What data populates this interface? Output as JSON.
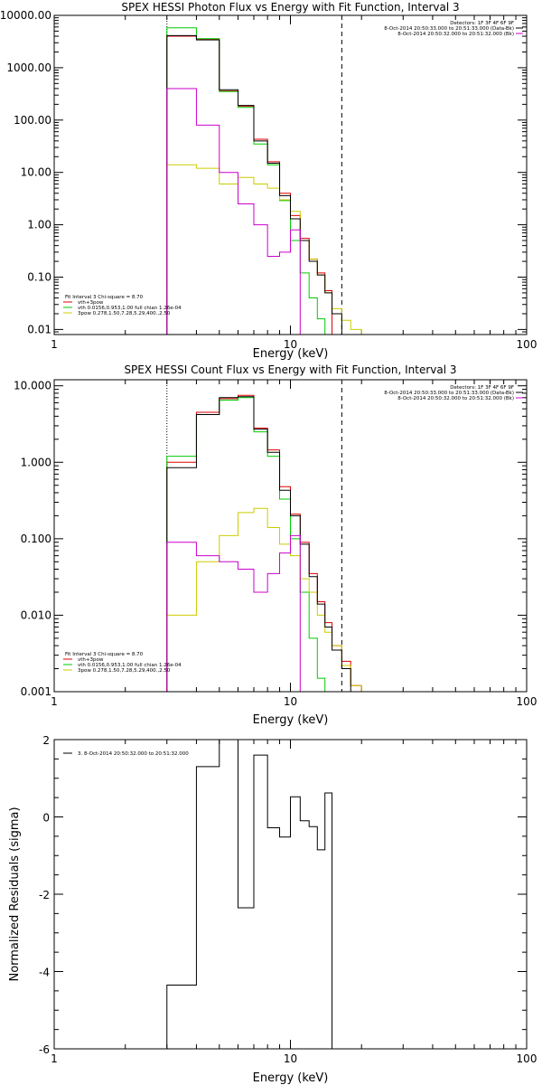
{
  "charts": [
    {
      "title": "SPEX HESSI Photon Flux vs Energy with Fit Function, Interval 3",
      "xlabel": "Energy (keV)",
      "ylabel": "",
      "x_ticks": [
        "1",
        "10",
        "100"
      ],
      "y_ticks": [
        "10000.00",
        "1000.00",
        "100.00",
        "10.00",
        "1.00",
        "0.10",
        "0.01"
      ],
      "legend_right": [
        {
          "text": "Detectors: 1F 3F 4F 6F 9F",
          "color": ""
        },
        {
          "text": "8-Oct-2014 20:50:33.000 to 20:51:33.000 (Data-Bk)",
          "color": "#000000"
        },
        {
          "text": "8-Oct-2014 20:50:32.000 to 20:51:32.000 (Bk)",
          "color": "#cc00cc"
        }
      ],
      "legend_left": [
        {
          "text": "Fit Interval  3    Chi-square = 8.70",
          "color": ""
        },
        {
          "text": "vth+3pow",
          "color": "#dd0000"
        },
        {
          "text": "vth 0.0156,0.953,1.00  full chian 1.26e-04",
          "color": "#00cc00"
        },
        {
          "text": "3pow 0.278,1.50,7.28,5.29,400.,2.50",
          "color": "#cccc00"
        }
      ]
    },
    {
      "title": "SPEX HESSI Count Flux vs Energy with Fit Function, Interval 3",
      "xlabel": "Energy (keV)",
      "ylabel": "",
      "x_ticks": [
        "1",
        "10",
        "100"
      ],
      "y_ticks": [
        "10.000",
        "1.000",
        "0.100",
        "0.010",
        "0.001"
      ],
      "legend_right": [
        {
          "text": "Detectors: 1F 3F 4F 6F 9F",
          "color": ""
        },
        {
          "text": "8-Oct-2014 20:50:33.000 to 20:51:33.000 (Data-Bk)",
          "color": "#000000"
        },
        {
          "text": "8-Oct-2014 20:50:32.000 to 20:51:32.000 (Bk)",
          "color": "#cc00cc"
        }
      ],
      "legend_left": [
        {
          "text": "Fit Interval  3    Chi-square = 8.70",
          "color": ""
        },
        {
          "text": "vth+3pow",
          "color": "#dd0000"
        },
        {
          "text": "vth 0.0156,0.953,1.00  full chian 1.26e-04",
          "color": "#00cc00"
        },
        {
          "text": "3pow 0.278,1.50,7.28,5.29,400.,2.50",
          "color": "#cccc00"
        }
      ]
    },
    {
      "title": "",
      "xlabel": "Energy (keV)",
      "ylabel": "Normalized Residuals (sigma)",
      "x_ticks": [
        "1",
        "10",
        "100"
      ],
      "y_ticks": [
        "2",
        "0",
        "-2",
        "-4",
        "-6"
      ],
      "legend_right": [],
      "legend_left": [
        {
          "text": "3.  8-Oct-2014 20:50:32.000 to 20:51:32.000",
          "color": "#000000"
        }
      ]
    }
  ],
  "chart_data": [
    {
      "type": "line",
      "title": "SPEX HESSI Photon Flux vs Energy with Fit Function, Interval 3",
      "xlabel": "Energy (keV)",
      "xscale": "log",
      "yscale": "log",
      "xlim": [
        1,
        100
      ],
      "ylim": [
        0.008,
        10000
      ],
      "bin_edges": [
        3,
        4,
        5,
        6,
        7,
        8,
        9,
        10,
        11,
        12,
        13,
        14,
        15,
        16.5,
        18,
        20,
        22
      ],
      "vlines": [
        {
          "x": 3,
          "style": "dotted"
        },
        {
          "x": 16.5,
          "style": "dashed"
        }
      ],
      "series": [
        {
          "name": "vth+3pow",
          "color": "#dd0000",
          "values": [
            4000,
            3500,
            360,
            185,
            43,
            16,
            4,
            1.5,
            0.55,
            0.22,
            0.12,
            0.055,
            null,
            null,
            null,
            null
          ]
        },
        {
          "name": "vth 0.0156,0.953,1.00  full chian 1.26e-04",
          "color": "#00cc00",
          "values": [
            5800,
            3600,
            350,
            175,
            35,
            14,
            2.9,
            0.5,
            0.12,
            0.04,
            0.016,
            0.007,
            null,
            null,
            null,
            null
          ]
        },
        {
          "name": "3pow 0.278,1.50,7.28,5.29,400.,2.50",
          "color": "#cccc00",
          "values": [
            14,
            12,
            6,
            8,
            6,
            5,
            3,
            1.8,
            0.5,
            0.22,
            0.11,
            0.05,
            0.025,
            0.015,
            0.01,
            0.005
          ]
        },
        {
          "name": "8-Oct-2014 20:50:33.000 to 20:51:33.000 (Data-Bk)",
          "color": "#000000",
          "values": [
            4100,
            3400,
            380,
            190,
            40,
            15,
            3.6,
            1.3,
            0.5,
            0.2,
            0.11,
            0.05,
            0.02,
            null,
            null,
            null
          ]
        },
        {
          "name": "8-Oct-2014 20:50:32.000 to 20:51:32.000 (Bk)",
          "color": "#cc00cc",
          "values": [
            400,
            80,
            10,
            2.5,
            1.0,
            0.25,
            0.3,
            0.8,
            null,
            null,
            null,
            null,
            null,
            null,
            null,
            null
          ]
        }
      ]
    },
    {
      "type": "line",
      "title": "SPEX HESSI Count Flux vs Energy with Fit Function, Interval 3",
      "xlabel": "Energy (keV)",
      "xscale": "log",
      "yscale": "log",
      "xlim": [
        1,
        100
      ],
      "ylim": [
        0.001,
        12
      ],
      "bin_edges": [
        3,
        4,
        5,
        6,
        7,
        8,
        9,
        10,
        11,
        12,
        13,
        14,
        15,
        16.5,
        18,
        20,
        22
      ],
      "vlines": [
        {
          "x": 3,
          "style": "dotted"
        },
        {
          "x": 16.5,
          "style": "dashed"
        }
      ],
      "series": [
        {
          "name": "vth+3pow",
          "color": "#dd0000",
          "values": [
            1.0,
            4.5,
            6.8,
            7.5,
            2.8,
            1.45,
            0.48,
            0.21,
            0.09,
            0.035,
            0.015,
            0.008,
            0.004,
            0.0025,
            0.0012,
            null
          ]
        },
        {
          "name": "vth 0.0156,0.953,1.00  full chian 1.26e-04",
          "color": "#00cc00",
          "values": [
            1.2,
            4.2,
            6.5,
            7.0,
            2.5,
            1.2,
            0.33,
            0.1,
            0.02,
            0.005,
            0.0015,
            null,
            null,
            null,
            null,
            null
          ]
        },
        {
          "name": "3pow 0.278,1.50,7.28,5.29,400.,2.50",
          "color": "#cccc00",
          "values": [
            0.01,
            0.05,
            0.11,
            0.22,
            0.25,
            0.14,
            0.085,
            0.06,
            0.03,
            0.02,
            0.01,
            0.006,
            0.004,
            0.0022,
            0.0012,
            null
          ]
        },
        {
          "name": "8-Oct-2014 20:50:33.000 to 20:51:33.000 (Data-Bk)",
          "color": "#000000",
          "values": [
            0.85,
            4.2,
            7.0,
            7.2,
            2.7,
            1.35,
            0.43,
            0.2,
            0.085,
            0.032,
            0.014,
            0.007,
            0.0035,
            0.002,
            null,
            null
          ]
        },
        {
          "name": "8-Oct-2014 20:50:32.000 to 20:51:32.000 (Bk)",
          "color": "#cc00cc",
          "values": [
            0.09,
            0.06,
            0.05,
            0.04,
            0.02,
            0.035,
            0.065,
            0.11,
            null,
            null,
            null,
            null,
            null,
            null,
            null,
            null
          ]
        }
      ]
    },
    {
      "type": "line",
      "title": "",
      "xlabel": "Energy (keV)",
      "ylabel": "Normalized Residuals (sigma)",
      "xscale": "log",
      "xlim": [
        1,
        100
      ],
      "ylim": [
        -6,
        2
      ],
      "bin_edges": [
        3,
        4,
        5,
        6,
        7,
        8,
        9,
        10,
        11,
        12,
        13,
        14,
        15,
        16.5
      ],
      "series": [
        {
          "name": "3.  8-Oct-2014 20:50:32.000 to 20:51:32.000",
          "color": "#000000",
          "values": [
            -4.35,
            1.3,
            2.0,
            -2.35,
            1.6,
            -0.28,
            -0.52,
            0.52,
            -0.1,
            -0.25,
            -0.85,
            0.62,
            null
          ]
        }
      ]
    }
  ]
}
